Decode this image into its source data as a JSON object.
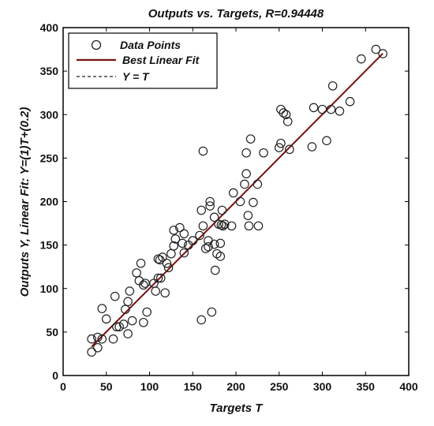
{
  "chart_data": {
    "type": "scatter",
    "title": "Outputs vs. Targets, R=0.94448",
    "xlabel": "Targets T",
    "ylabel": "Outputs Y,  Linear Fit: Y=(1)T+(0.2)",
    "xlim": [
      0,
      400
    ],
    "ylim": [
      0,
      400
    ],
    "xticks": [
      "0",
      "50",
      "100",
      "150",
      "200",
      "250",
      "300",
      "350",
      "400"
    ],
    "yticks": [
      "0",
      "50",
      "100",
      "150",
      "200",
      "250",
      "300",
      "350",
      "400"
    ],
    "grid": false,
    "legend_position": "top-left",
    "legend": {
      "data_points": "Data Points",
      "best_fit": "Best Linear Fit",
      "identity": "Y = T"
    },
    "fit": {
      "slope": 1,
      "intercept": 0.2,
      "x_range": [
        33,
        370
      ]
    },
    "identity_range": [
      33,
      370
    ],
    "colors": {
      "points": "#222222",
      "fit": "#7a1010",
      "identity": "#222222",
      "axes": "#000000"
    },
    "points": [
      [
        33,
        42
      ],
      [
        33,
        27
      ],
      [
        40,
        32
      ],
      [
        40,
        44
      ],
      [
        45,
        42
      ],
      [
        45,
        77
      ],
      [
        50,
        65
      ],
      [
        58,
        42
      ],
      [
        60,
        91
      ],
      [
        62,
        56
      ],
      [
        65,
        56
      ],
      [
        70,
        59
      ],
      [
        72,
        76
      ],
      [
        75,
        48
      ],
      [
        75,
        85
      ],
      [
        77,
        97
      ],
      [
        80,
        63
      ],
      [
        85,
        118
      ],
      [
        88,
        109
      ],
      [
        90,
        129
      ],
      [
        93,
        104
      ],
      [
        93,
        61
      ],
      [
        95,
        106
      ],
      [
        97,
        73
      ],
      [
        105,
        106
      ],
      [
        107,
        97
      ],
      [
        110,
        134
      ],
      [
        110,
        112
      ],
      [
        112,
        133
      ],
      [
        113,
        112
      ],
      [
        115,
        136
      ],
      [
        118,
        95
      ],
      [
        120,
        129
      ],
      [
        122,
        124
      ],
      [
        125,
        140
      ],
      [
        128,
        149
      ],
      [
        128,
        167
      ],
      [
        130,
        157
      ],
      [
        135,
        170
      ],
      [
        138,
        152
      ],
      [
        140,
        163
      ],
      [
        140,
        141
      ],
      [
        145,
        150
      ],
      [
        150,
        155
      ],
      [
        158,
        161
      ],
      [
        160,
        64
      ],
      [
        160,
        190
      ],
      [
        162,
        258
      ],
      [
        162,
        172
      ],
      [
        165,
        146
      ],
      [
        168,
        155
      ],
      [
        168,
        148
      ],
      [
        170,
        200
      ],
      [
        170,
        195
      ],
      [
        172,
        73
      ],
      [
        175,
        151
      ],
      [
        175,
        182
      ],
      [
        176,
        121
      ],
      [
        178,
        140
      ],
      [
        180,
        174
      ],
      [
        182,
        137
      ],
      [
        182,
        152
      ],
      [
        183,
        173
      ],
      [
        184,
        190
      ],
      [
        185,
        172
      ],
      [
        187,
        174
      ],
      [
        195,
        172
      ],
      [
        197,
        210
      ],
      [
        205,
        200
      ],
      [
        210,
        220
      ],
      [
        212,
        232
      ],
      [
        212,
        256
      ],
      [
        214,
        184
      ],
      [
        215,
        172
      ],
      [
        217,
        272
      ],
      [
        220,
        199
      ],
      [
        225,
        220
      ],
      [
        226,
        172
      ],
      [
        232,
        256
      ],
      [
        250,
        262
      ],
      [
        252,
        267
      ],
      [
        252,
        306
      ],
      [
        255,
        302
      ],
      [
        258,
        300
      ],
      [
        260,
        292
      ],
      [
        262,
        260
      ],
      [
        288,
        263
      ],
      [
        290,
        308
      ],
      [
        300,
        306
      ],
      [
        305,
        270
      ],
      [
        310,
        306
      ],
      [
        312,
        333
      ],
      [
        320,
        304
      ],
      [
        332,
        315
      ],
      [
        345,
        364
      ],
      [
        362,
        375
      ],
      [
        370,
        370
      ]
    ]
  }
}
